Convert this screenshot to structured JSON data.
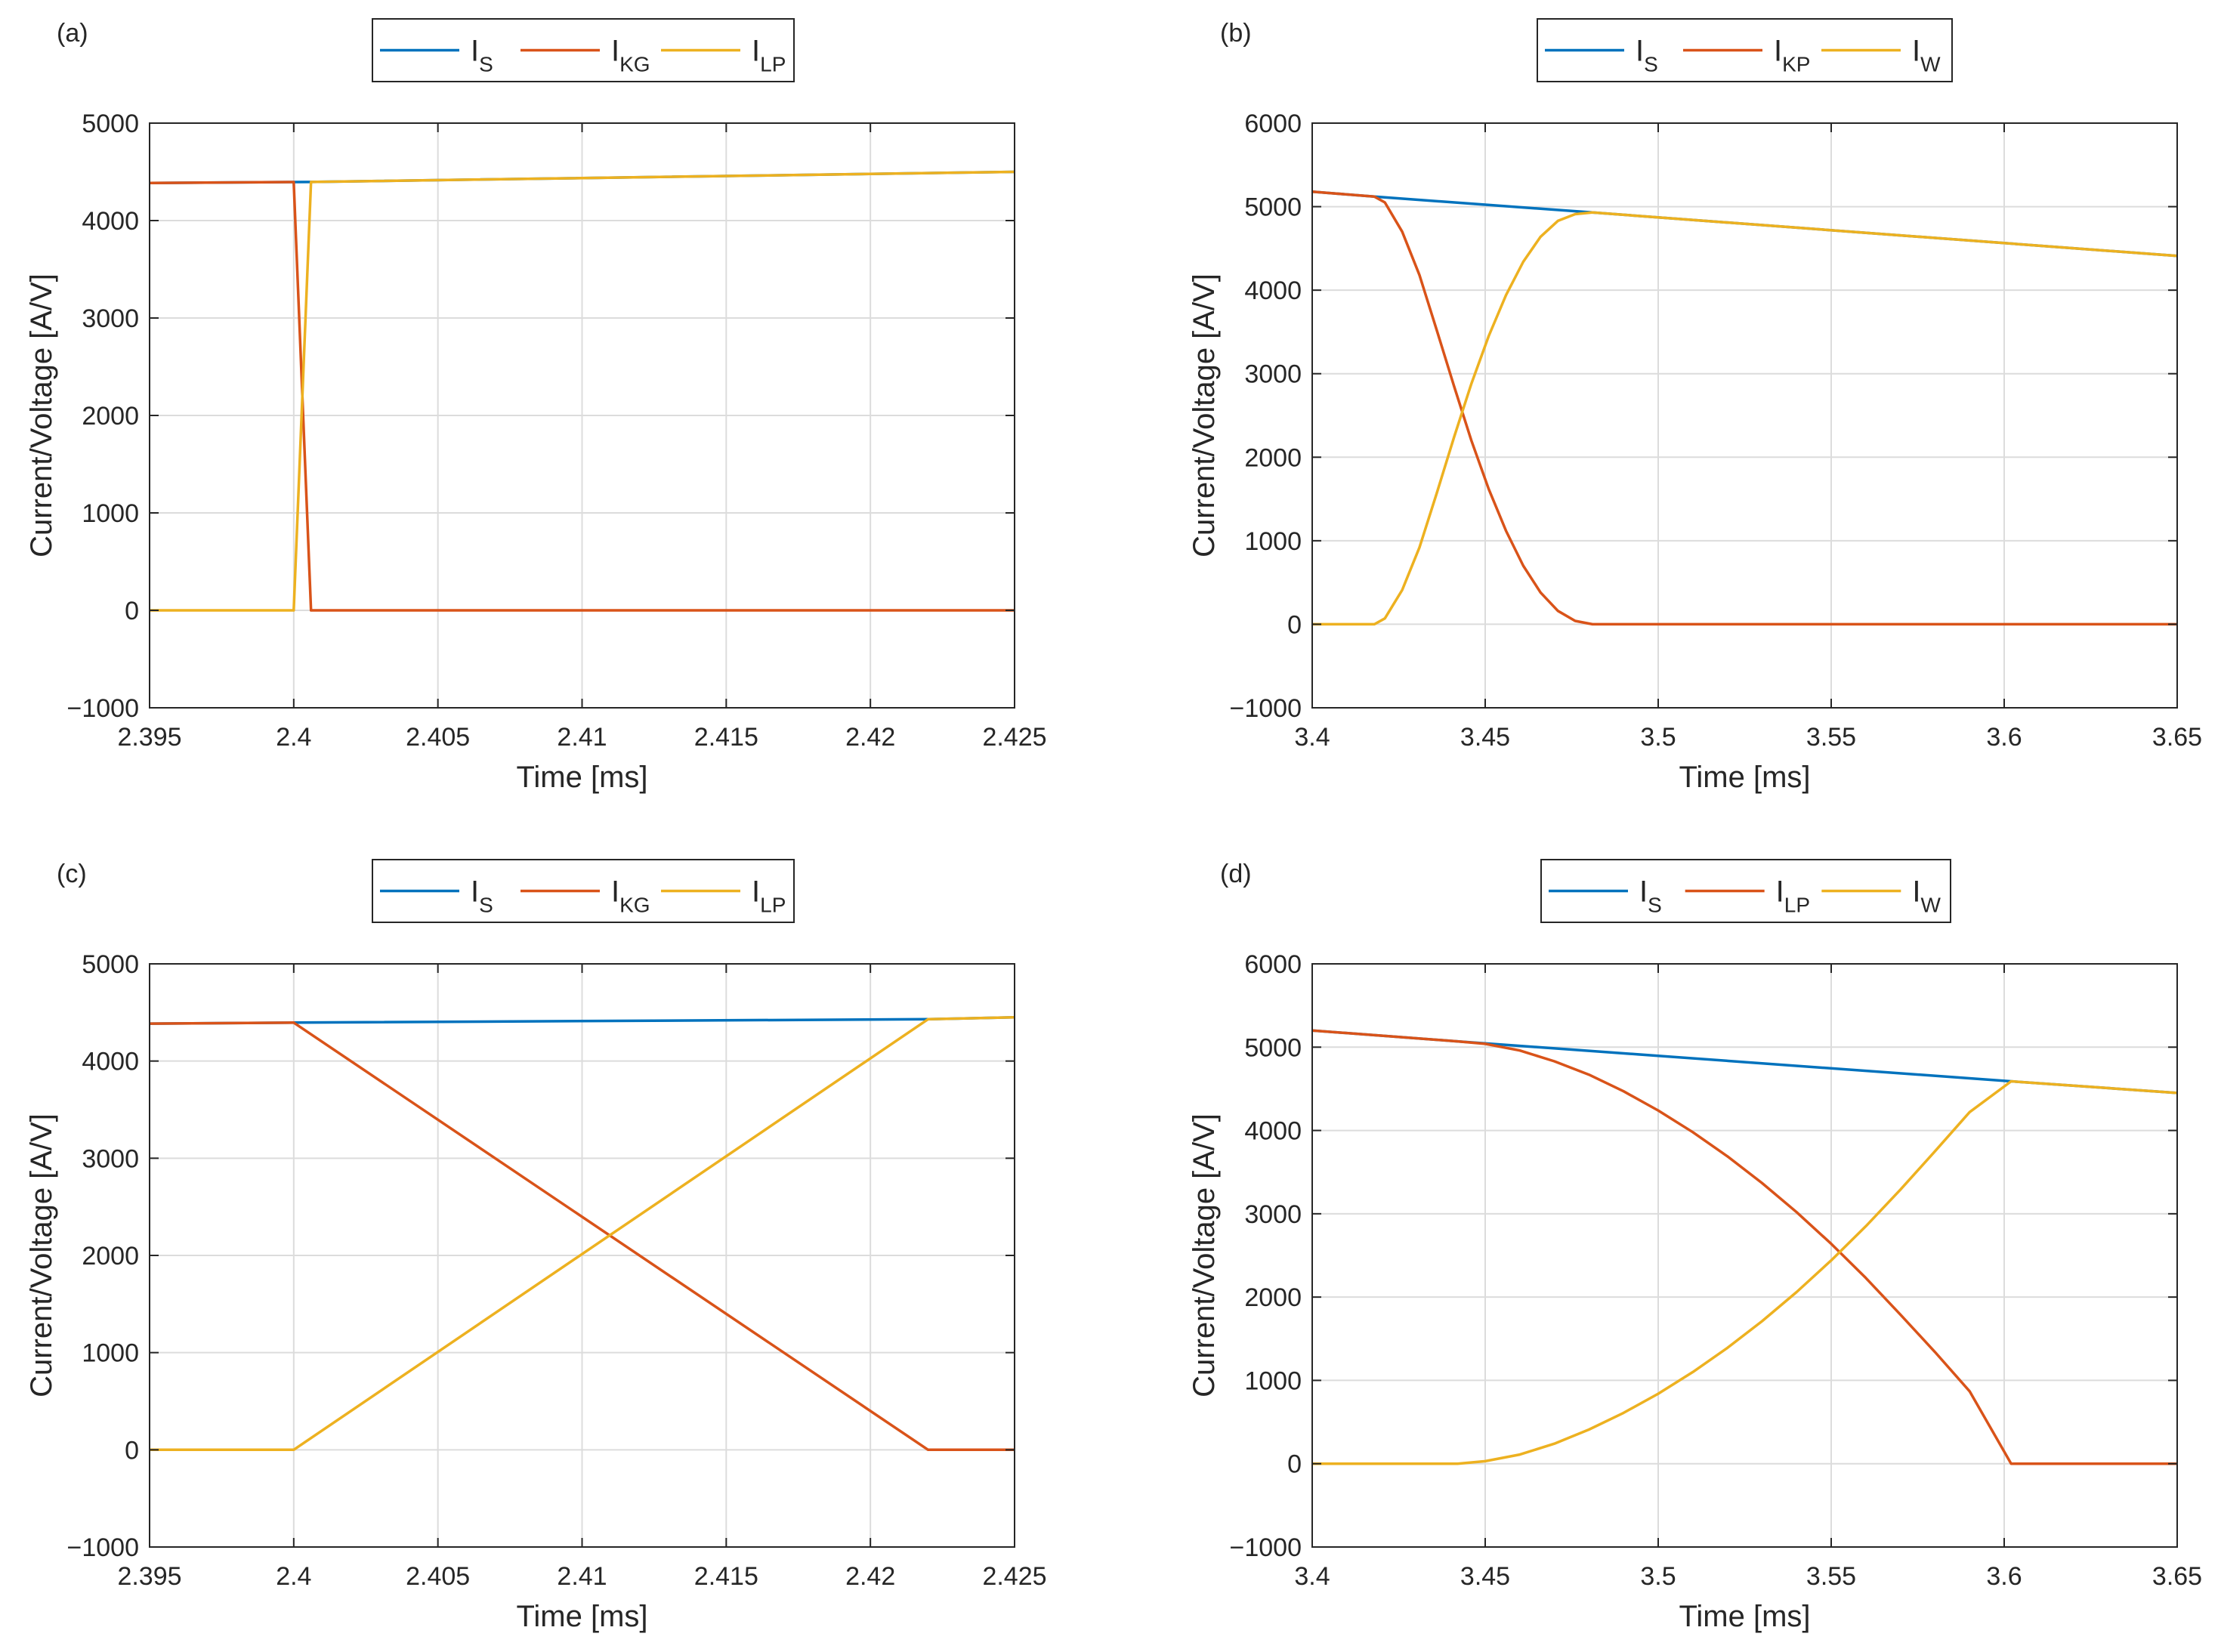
{
  "colors": {
    "blue": "#0072BD",
    "orange": "#D95319",
    "yellow": "#EDB120",
    "grid": "#dcdcdc",
    "axis": "#262626"
  },
  "chart_data": [
    {
      "type": "line",
      "panel_label": "(a)",
      "xlabel": "Time [ms]",
      "ylabel": "Current/Voltage [A/V]",
      "xlim": [
        2.395,
        2.425
      ],
      "ylim": [
        -1000,
        5000
      ],
      "xticks": [
        2.395,
        2.4,
        2.405,
        2.41,
        2.415,
        2.42,
        2.425
      ],
      "xtick_labels": [
        "2.395",
        "2.4",
        "2.405",
        "2.41",
        "2.415",
        "2.42",
        "2.425"
      ],
      "yticks": [
        -1000,
        0,
        1000,
        2000,
        3000,
        4000,
        5000
      ],
      "ytick_labels": [
        "−1000",
        "0",
        "1000",
        "2000",
        "3000",
        "4000",
        "5000"
      ],
      "grid": true,
      "legend_position": "top-outside",
      "series": [
        {
          "name": "I",
          "sub": "S",
          "color": "blue",
          "x": [
            2.395,
            2.4,
            2.4006,
            2.425
          ],
          "y": [
            4385,
            4395,
            4396,
            4500
          ]
        },
        {
          "name": "I",
          "sub": "KG",
          "color": "orange",
          "x": [
            2.395,
            2.4,
            2.4006,
            2.425
          ],
          "y": [
            4385,
            4395,
            0,
            0
          ]
        },
        {
          "name": "I",
          "sub": "LP",
          "color": "yellow",
          "x": [
            2.395,
            2.4,
            2.4006,
            2.425
          ],
          "y": [
            0,
            0,
            4396,
            4500
          ]
        }
      ]
    },
    {
      "type": "line",
      "panel_label": "(b)",
      "xlabel": "Time [ms]",
      "ylabel": "Current/Voltage [A/V]",
      "xlim": [
        3.4,
        3.65
      ],
      "ylim": [
        -1000,
        6000
      ],
      "xticks": [
        3.4,
        3.45,
        3.5,
        3.55,
        3.6,
        3.65
      ],
      "xtick_labels": [
        "3.4",
        "3.45",
        "3.5",
        "3.55",
        "3.6",
        "3.65"
      ],
      "yticks": [
        -1000,
        0,
        1000,
        2000,
        3000,
        4000,
        5000,
        6000
      ],
      "ytick_labels": [
        "−1000",
        "0",
        "1000",
        "2000",
        "3000",
        "4000",
        "5000",
        "6000"
      ],
      "grid": true,
      "legend_position": "top-outside",
      "series": [
        {
          "name": "I",
          "sub": "S",
          "color": "blue",
          "x": [
            3.4,
            3.418,
            3.481,
            3.65
          ],
          "y": [
            5180,
            5120,
            4930,
            4410
          ]
        },
        {
          "name": "I",
          "sub": "KP",
          "color": "orange",
          "x": [
            3.4,
            3.418,
            3.421,
            3.426,
            3.431,
            3.436,
            3.441,
            3.446,
            3.451,
            3.456,
            3.461,
            3.466,
            3.471,
            3.476,
            3.481,
            3.65
          ],
          "y": [
            5180,
            5120,
            5050,
            4700,
            4180,
            3520,
            2850,
            2200,
            1620,
            1120,
            700,
            380,
            160,
            40,
            0,
            0
          ]
        },
        {
          "name": "I",
          "sub": "W",
          "color": "yellow",
          "x": [
            3.4,
            3.418,
            3.421,
            3.426,
            3.431,
            3.436,
            3.441,
            3.446,
            3.451,
            3.456,
            3.461,
            3.466,
            3.471,
            3.476,
            3.481,
            3.65
          ],
          "y": [
            0,
            0,
            70,
            410,
            920,
            1570,
            2240,
            2880,
            3450,
            3940,
            4340,
            4640,
            4830,
            4910,
            4930,
            4410
          ]
        }
      ]
    },
    {
      "type": "line",
      "panel_label": "(c)",
      "xlabel": "Time [ms]",
      "ylabel": "Current/Voltage [A/V]",
      "xlim": [
        2.395,
        2.425
      ],
      "ylim": [
        -1000,
        5000
      ],
      "xticks": [
        2.395,
        2.4,
        2.405,
        2.41,
        2.415,
        2.42,
        2.425
      ],
      "xtick_labels": [
        "2.395",
        "2.4",
        "2.405",
        "2.41",
        "2.415",
        "2.42",
        "2.425"
      ],
      "yticks": [
        -1000,
        0,
        1000,
        2000,
        3000,
        4000,
        5000
      ],
      "ytick_labels": [
        "−1000",
        "0",
        "1000",
        "2000",
        "3000",
        "4000",
        "5000"
      ],
      "grid": true,
      "legend_position": "top-outside",
      "series": [
        {
          "name": "I",
          "sub": "S",
          "color": "blue",
          "x": [
            2.395,
            2.4,
            2.422,
            2.425
          ],
          "y": [
            4385,
            4395,
            4430,
            4450
          ]
        },
        {
          "name": "I",
          "sub": "KG",
          "color": "orange",
          "x": [
            2.395,
            2.4,
            2.422,
            2.425
          ],
          "y": [
            4385,
            4395,
            0,
            0
          ]
        },
        {
          "name": "I",
          "sub": "LP",
          "color": "yellow",
          "x": [
            2.395,
            2.4,
            2.422,
            2.425
          ],
          "y": [
            0,
            0,
            4430,
            4450
          ]
        }
      ]
    },
    {
      "type": "line",
      "panel_label": "(d)",
      "xlabel": "Time [ms]",
      "ylabel": "Current/Voltage [A/V]",
      "xlim": [
        3.4,
        3.65
      ],
      "ylim": [
        -1000,
        6000
      ],
      "xticks": [
        3.4,
        3.45,
        3.5,
        3.55,
        3.6,
        3.65
      ],
      "xtick_labels": [
        "3.4",
        "3.45",
        "3.5",
        "3.55",
        "3.6",
        "3.65"
      ],
      "yticks": [
        -1000,
        0,
        1000,
        2000,
        3000,
        4000,
        5000,
        6000
      ],
      "ytick_labels": [
        "−1000",
        "0",
        "1000",
        "2000",
        "3000",
        "4000",
        "5000",
        "6000"
      ],
      "grid": true,
      "legend_position": "top-outside",
      "series": [
        {
          "name": "I",
          "sub": "S",
          "color": "blue",
          "x": [
            3.4,
            3.442,
            3.602,
            3.65
          ],
          "y": [
            5200,
            5070,
            4590,
            4450
          ]
        },
        {
          "name": "I",
          "sub": "LP",
          "color": "orange",
          "x": [
            3.4,
            3.442,
            3.45,
            3.46,
            3.47,
            3.48,
            3.49,
            3.5,
            3.51,
            3.52,
            3.53,
            3.54,
            3.55,
            3.56,
            3.57,
            3.58,
            3.59,
            3.602,
            3.65
          ],
          "y": [
            5200,
            5070,
            5040,
            4960,
            4830,
            4670,
            4470,
            4240,
            3980,
            3690,
            3370,
            3020,
            2640,
            2230,
            1790,
            1340,
            870,
            0,
            0
          ]
        },
        {
          "name": "I",
          "sub": "W",
          "color": "yellow",
          "x": [
            3.4,
            3.442,
            3.45,
            3.46,
            3.47,
            3.48,
            3.49,
            3.5,
            3.51,
            3.52,
            3.53,
            3.54,
            3.55,
            3.56,
            3.57,
            3.58,
            3.59,
            3.602,
            3.65
          ],
          "y": [
            0,
            0,
            30,
            110,
            240,
            410,
            610,
            840,
            1100,
            1390,
            1710,
            2060,
            2440,
            2850,
            3290,
            3750,
            4220,
            4590,
            4450
          ]
        }
      ]
    }
  ]
}
